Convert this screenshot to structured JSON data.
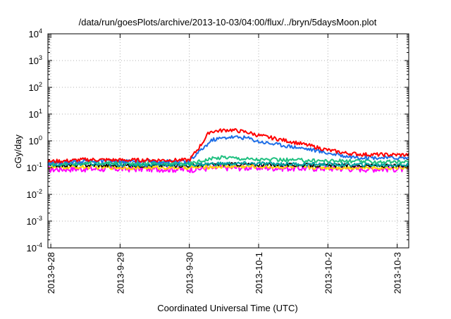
{
  "chart_data": {
    "type": "line",
    "title": "/data/run/goesPlots/archive/2013-10-03/04:00/flux/../bryn/5daysMoon.plot",
    "xlabel": "Coordinated Universal Time (UTC)",
    "ylabel": "cGy/day",
    "y_scale": "log",
    "ylim": [
      0.0001,
      10000
    ],
    "y_ticks": [
      {
        "base": "10",
        "exp": "-4",
        "value": 0.0001
      },
      {
        "base": "10",
        "exp": "-3",
        "value": 0.001
      },
      {
        "base": "10",
        "exp": "-2",
        "value": 0.01
      },
      {
        "base": "10",
        "exp": "-1",
        "value": 0.1
      },
      {
        "base": "10",
        "exp": "0",
        "value": 1
      },
      {
        "base": "10",
        "exp": "1",
        "value": 10
      },
      {
        "base": "10",
        "exp": "2",
        "value": 100
      },
      {
        "base": "10",
        "exp": "3",
        "value": 1000
      },
      {
        "base": "10",
        "exp": "4",
        "value": 10000
      }
    ],
    "xlim": [
      "2013-09-27 23:00",
      "2013-10-03 04:00"
    ],
    "x_ticks": [
      {
        "label": "2013-9-28",
        "value": "2013-09-28 00:00"
      },
      {
        "label": "2013-9-29",
        "value": "2013-09-29 00:00"
      },
      {
        "label": "2013-9-30",
        "value": "2013-09-30 00:00"
      },
      {
        "label": "2013-10-1",
        "value": "2013-10-01 00:00"
      },
      {
        "label": "2013-10-2",
        "value": "2013-10-02 00:00"
      },
      {
        "label": "2013-10-3",
        "value": "2013-10-03 00:00"
      }
    ],
    "grid": true,
    "series": [
      {
        "color": "#ff00ff",
        "x": [
          "2013-09-27 23:00",
          "2013-09-28 06:00",
          "2013-09-28 12:00",
          "2013-09-29 00:00",
          "2013-09-29 12:00",
          "2013-09-30 00:00",
          "2013-09-30 06:00",
          "2013-09-30 12:00",
          "2013-10-01 00:00",
          "2013-10-01 12:00",
          "2013-10-02 00:00",
          "2013-10-02 12:00",
          "2013-10-03 00:00",
          "2013-10-03 04:00"
        ],
        "values": [
          0.085,
          0.09,
          0.09,
          0.09,
          0.09,
          0.085,
          0.095,
          0.1,
          0.1,
          0.095,
          0.095,
          0.09,
          0.09,
          0.085
        ]
      },
      {
        "color": "#ffd700",
        "x": [
          "2013-09-27 23:00",
          "2013-09-28 12:00",
          "2013-09-29 00:00",
          "2013-09-29 12:00",
          "2013-09-30 00:00",
          "2013-09-30 12:00",
          "2013-10-01 00:00",
          "2013-10-01 12:00",
          "2013-10-02 00:00",
          "2013-10-02 12:00",
          "2013-10-03 00:00",
          "2013-10-03 04:00"
        ],
        "values": [
          0.1,
          0.105,
          0.1,
          0.1,
          0.1,
          0.11,
          0.11,
          0.105,
          0.1,
          0.1,
          0.1,
          0.1
        ]
      },
      {
        "color": "#000000",
        "x": [
          "2013-09-27 23:00",
          "2013-09-28 12:00",
          "2013-09-29 00:00",
          "2013-09-29 12:00",
          "2013-09-30 00:00",
          "2013-09-30 12:00",
          "2013-10-01 00:00",
          "2013-10-01 12:00",
          "2013-10-02 00:00",
          "2013-10-02 12:00",
          "2013-10-03 00:00",
          "2013-10-03 04:00"
        ],
        "values": [
          0.12,
          0.125,
          0.12,
          0.12,
          0.12,
          0.135,
          0.13,
          0.125,
          0.12,
          0.118,
          0.115,
          0.115
        ]
      },
      {
        "color": "#00a0a0",
        "x": [
          "2013-09-27 23:00",
          "2013-09-28 12:00",
          "2013-09-29 00:00",
          "2013-09-29 12:00",
          "2013-09-30 00:00",
          "2013-09-30 12:00",
          "2013-10-01 00:00",
          "2013-10-01 12:00",
          "2013-10-02 00:00",
          "2013-10-02 12:00",
          "2013-10-03 00:00",
          "2013-10-03 04:00"
        ],
        "values": [
          0.13,
          0.135,
          0.13,
          0.13,
          0.13,
          0.14,
          0.14,
          0.135,
          0.13,
          0.128,
          0.125,
          0.125
        ]
      },
      {
        "color": "#20c080",
        "x": [
          "2013-09-27 23:00",
          "2013-09-28 12:00",
          "2013-09-29 00:00",
          "2013-09-29 12:00",
          "2013-09-30 00:00",
          "2013-09-30 06:00",
          "2013-09-30 12:00",
          "2013-09-30 18:00",
          "2013-10-01 00:00",
          "2013-10-01 12:00",
          "2013-10-02 00:00",
          "2013-10-02 12:00",
          "2013-10-03 00:00",
          "2013-10-03 04:00"
        ],
        "values": [
          0.14,
          0.15,
          0.15,
          0.15,
          0.14,
          0.2,
          0.25,
          0.22,
          0.2,
          0.19,
          0.18,
          0.17,
          0.16,
          0.16
        ]
      },
      {
        "color": "#1e6ee6",
        "x": [
          "2013-09-27 23:00",
          "2013-09-28 06:00",
          "2013-09-28 12:00",
          "2013-09-29 00:00",
          "2013-09-29 12:00",
          "2013-09-30 00:00",
          "2013-09-30 04:00",
          "2013-09-30 08:00",
          "2013-09-30 14:00",
          "2013-09-30 20:00",
          "2013-10-01 00:00",
          "2013-10-01 06:00",
          "2013-10-01 12:00",
          "2013-10-01 18:00",
          "2013-10-02 00:00",
          "2013-10-02 06:00",
          "2013-10-02 12:00",
          "2013-10-03 00:00",
          "2013-10-03 04:00"
        ],
        "values": [
          0.15,
          0.16,
          0.18,
          0.17,
          0.17,
          0.17,
          0.45,
          1.1,
          1.4,
          1.3,
          0.95,
          0.75,
          0.6,
          0.48,
          0.35,
          0.27,
          0.24,
          0.23,
          0.23
        ]
      },
      {
        "color": "#ff0000",
        "x": [
          "2013-09-27 23:00",
          "2013-09-28 06:00",
          "2013-09-28 12:00",
          "2013-09-29 00:00",
          "2013-09-29 12:00",
          "2013-09-30 00:00",
          "2013-09-30 04:00",
          "2013-09-30 07:00",
          "2013-09-30 14:00",
          "2013-09-30 20:00",
          "2013-10-01 00:00",
          "2013-10-01 06:00",
          "2013-10-01 12:00",
          "2013-10-01 18:00",
          "2013-10-02 00:00",
          "2013-10-02 06:00",
          "2013-10-02 12:00",
          "2013-10-03 00:00",
          "2013-10-03 04:00"
        ],
        "values": [
          0.17,
          0.18,
          0.2,
          0.19,
          0.19,
          0.19,
          0.7,
          2.2,
          2.6,
          2.1,
          1.6,
          1.2,
          0.9,
          0.65,
          0.45,
          0.35,
          0.31,
          0.3,
          0.3
        ]
      }
    ]
  }
}
